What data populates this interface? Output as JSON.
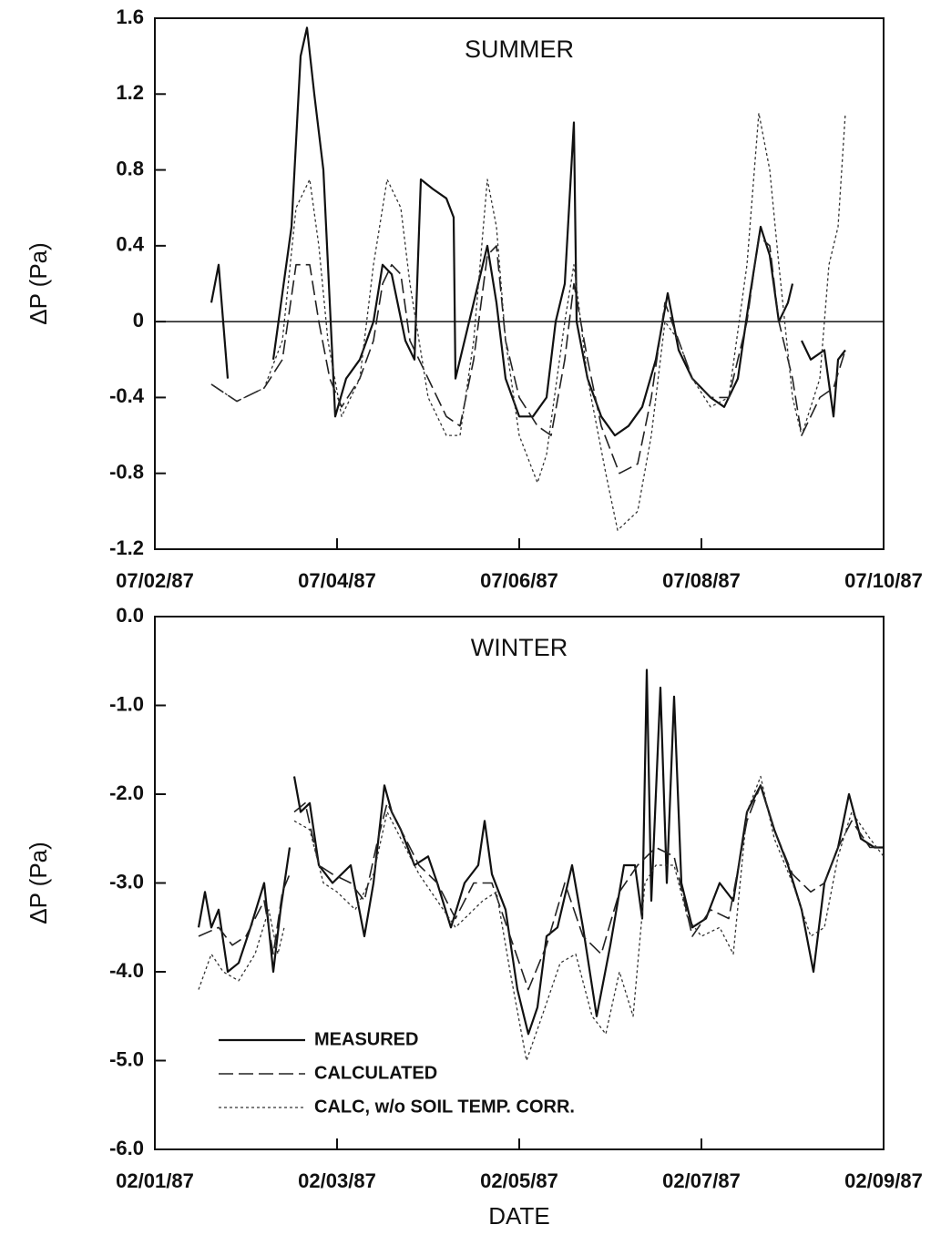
{
  "chart_data": [
    {
      "type": "line",
      "title": "SUMMER",
      "ylabel": "ΔP  (Pa)",
      "xlim": [
        0,
        8
      ],
      "xticks": [
        {
          "value": 0,
          "label": "07/02/87"
        },
        {
          "value": 2,
          "label": "07/04/87"
        },
        {
          "value": 4,
          "label": "07/06/87"
        },
        {
          "value": 6,
          "label": "07/08/87"
        },
        {
          "value": 8,
          "label": "07/10/87"
        }
      ],
      "ylim": [
        -1.2,
        1.6
      ],
      "yticks": [
        1.6,
        1.2,
        0.8,
        0.4,
        0,
        -0.4,
        -0.8,
        -1.2
      ],
      "hlines": [
        0
      ],
      "series": [
        {
          "color": "#111111",
          "dash": "solid",
          "x": [
            0.62,
            0.7,
            0.8,
            null,
            1.3,
            1.5,
            1.6,
            1.67,
            1.75,
            1.85,
            1.92,
            1.98,
            2.1,
            2.25,
            2.4,
            2.5,
            2.6,
            2.75,
            2.85,
            2.92,
            3.05,
            3.2,
            3.28,
            3.3,
            3.4,
            3.55,
            3.65,
            3.75,
            3.85,
            4.0,
            4.15,
            4.3,
            4.4,
            4.5,
            4.6,
            4.63,
            4.75,
            4.9,
            5.05,
            5.2,
            5.35,
            5.5,
            5.63,
            5.75,
            5.9,
            6.0,
            6.1,
            6.25,
            6.4,
            6.52,
            6.65,
            6.75,
            6.85,
            6.95,
            7.0,
            null,
            7.1,
            7.2,
            7.35,
            7.45,
            7.5,
            7.58
          ],
          "values": [
            0.1,
            0.3,
            -0.3,
            null,
            -0.2,
            0.5,
            1.4,
            1.55,
            1.2,
            0.8,
            0.1,
            -0.5,
            -0.3,
            -0.2,
            0.0,
            0.3,
            0.25,
            -0.1,
            -0.2,
            0.75,
            0.7,
            0.65,
            0.55,
            -0.3,
            -0.1,
            0.2,
            0.4,
            0.1,
            -0.3,
            -0.5,
            -0.5,
            -0.4,
            0.0,
            0.2,
            1.05,
            0.0,
            -0.3,
            -0.5,
            -0.6,
            -0.55,
            -0.45,
            -0.2,
            0.15,
            -0.15,
            -0.3,
            -0.35,
            -0.4,
            -0.45,
            -0.3,
            0.1,
            0.5,
            0.35,
            0.0,
            0.1,
            0.2,
            null,
            -0.1,
            -0.2,
            -0.15,
            -0.5,
            -0.2,
            -0.15
          ]
        },
        {
          "color": "#222222",
          "dash": "long-dash",
          "x": [
            0.62,
            0.9,
            1.2,
            1.4,
            1.55,
            1.7,
            1.8,
            1.92,
            2.05,
            2.25,
            2.4,
            2.5,
            2.6,
            2.7,
            2.8,
            3.0,
            3.2,
            3.35,
            3.5,
            3.65,
            3.75,
            3.85,
            4.0,
            4.2,
            4.35,
            4.5,
            4.6,
            4.75,
            4.9,
            5.1,
            5.3,
            5.45,
            5.6,
            5.75,
            5.9,
            6.1,
            6.3,
            6.5,
            6.63,
            6.75,
            6.85,
            7.0,
            7.1,
            7.3,
            7.45,
            7.58
          ],
          "values": [
            -0.33,
            -0.42,
            -0.35,
            -0.2,
            0.3,
            0.3,
            0.0,
            -0.3,
            -0.45,
            -0.3,
            -0.1,
            0.2,
            0.3,
            0.25,
            -0.1,
            -0.3,
            -0.5,
            -0.55,
            -0.2,
            0.35,
            0.4,
            -0.1,
            -0.4,
            -0.55,
            -0.6,
            -0.2,
            0.2,
            -0.2,
            -0.55,
            -0.8,
            -0.75,
            -0.4,
            0.1,
            -0.1,
            -0.3,
            -0.4,
            -0.4,
            0.0,
            0.45,
            0.4,
            0.0,
            -0.3,
            -0.6,
            -0.4,
            -0.35,
            -0.15
          ]
        },
        {
          "color": "#333333",
          "dash": "dotted",
          "x": [
            0.62,
            0.9,
            1.2,
            1.4,
            1.55,
            1.7,
            1.8,
            1.9,
            2.05,
            2.25,
            2.4,
            2.55,
            2.7,
            2.8,
            3.0,
            3.2,
            3.35,
            3.5,
            3.65,
            3.75,
            3.85,
            4.0,
            4.2,
            4.3,
            4.5,
            4.6,
            4.75,
            4.95,
            5.08,
            5.3,
            5.45,
            5.6,
            5.75,
            5.9,
            6.1,
            6.3,
            6.5,
            6.63,
            6.75,
            6.85,
            7.0,
            7.1,
            7.3,
            7.4,
            7.5,
            7.58
          ],
          "values": [
            -0.33,
            -0.42,
            -0.35,
            -0.1,
            0.6,
            0.75,
            0.4,
            -0.1,
            -0.5,
            -0.3,
            0.3,
            0.75,
            0.6,
            0.2,
            -0.4,
            -0.6,
            -0.6,
            -0.1,
            0.75,
            0.5,
            -0.1,
            -0.6,
            -0.85,
            -0.7,
            0.0,
            0.3,
            -0.3,
            -0.8,
            -1.1,
            -1.0,
            -0.6,
            0.0,
            -0.1,
            -0.3,
            -0.45,
            -0.4,
            0.3,
            1.1,
            0.8,
            0.3,
            -0.4,
            -0.6,
            -0.3,
            0.3,
            0.5,
            1.1
          ]
        }
      ]
    },
    {
      "type": "line",
      "title": "WINTER",
      "ylabel": "ΔP  (Pa)",
      "xlabel": "DATE",
      "legend": "lower left",
      "xlim": [
        0,
        8
      ],
      "xticks": [
        {
          "value": 0,
          "label": "02/01/87"
        },
        {
          "value": 2,
          "label": "02/03/87"
        },
        {
          "value": 4,
          "label": "02/05/87"
        },
        {
          "value": 6,
          "label": "02/07/87"
        },
        {
          "value": 8,
          "label": "02/09/87"
        }
      ],
      "ylim": [
        -6,
        0
      ],
      "yticks": [
        {
          "value": 0,
          "label": "0.0"
        },
        {
          "value": -1,
          "label": "-1.0"
        },
        {
          "value": -2,
          "label": "-2.0"
        },
        {
          "value": -3,
          "label": "-3.0"
        },
        {
          "value": -4,
          "label": "-4.0"
        },
        {
          "value": -5,
          "label": "-5.0"
        },
        {
          "value": -6,
          "label": "-6.0"
        }
      ],
      "series": [
        {
          "name": "MEASURED",
          "color": "#111111",
          "dash": "solid",
          "x": [
            0.48,
            0.55,
            0.62,
            0.7,
            0.8,
            0.92,
            1.05,
            1.2,
            1.3,
            1.38,
            1.48,
            null,
            1.53,
            1.6,
            1.7,
            1.8,
            1.95,
            2.15,
            2.3,
            2.4,
            2.52,
            2.6,
            2.7,
            2.85,
            3.0,
            3.1,
            3.25,
            3.4,
            3.55,
            3.62,
            3.7,
            3.85,
            3.98,
            4.1,
            4.2,
            4.3,
            4.42,
            4.58,
            4.7,
            4.85,
            5.0,
            5.15,
            5.27,
            5.35,
            5.4,
            5.45,
            5.55,
            5.62,
            5.7,
            5.78,
            5.9,
            6.05,
            6.2,
            6.35,
            6.5,
            6.65,
            6.8,
            6.95,
            7.1,
            7.23,
            7.35,
            7.5,
            7.62,
            7.75,
            7.9,
            8.0
          ],
          "values": [
            -3.5,
            -3.1,
            -3.5,
            -3.3,
            -4.0,
            -3.9,
            -3.5,
            -3.0,
            -4.0,
            -3.3,
            -2.6,
            null,
            -1.8,
            -2.2,
            -2.1,
            -2.8,
            -3.0,
            -2.8,
            -3.6,
            -3.0,
            -1.9,
            -2.2,
            -2.4,
            -2.8,
            -2.7,
            -3.0,
            -3.5,
            -3.0,
            -2.8,
            -2.3,
            -2.9,
            -3.3,
            -4.2,
            -4.7,
            -4.4,
            -3.6,
            -3.5,
            -2.8,
            -3.5,
            -4.5,
            -3.7,
            -2.8,
            -2.8,
            -3.4,
            -0.6,
            -3.2,
            -0.8,
            -3.0,
            -0.9,
            -3.0,
            -3.5,
            -3.4,
            -3.0,
            -3.2,
            -2.2,
            -1.9,
            -2.4,
            -2.8,
            -3.3,
            -4.0,
            -3.0,
            -2.6,
            -2.0,
            -2.5,
            -2.6,
            -2.6
          ]
        },
        {
          "name": "CALCULATED",
          "color": "#222222",
          "dash": "long-dash",
          "x": [
            0.48,
            0.7,
            0.85,
            1.0,
            1.2,
            1.3,
            1.4,
            1.48,
            null,
            1.53,
            1.65,
            1.8,
            1.95,
            2.15,
            2.3,
            2.45,
            2.55,
            2.7,
            2.9,
            3.1,
            3.3,
            3.5,
            3.7,
            3.9,
            4.1,
            4.3,
            4.5,
            4.7,
            4.9,
            5.1,
            5.3,
            5.5,
            5.7,
            5.9,
            6.1,
            6.3,
            6.5,
            6.65,
            6.8,
            7.0,
            7.2,
            7.35,
            7.5,
            7.65,
            7.85,
            8.0
          ],
          "values": [
            -3.6,
            -3.5,
            -3.7,
            -3.6,
            -3.2,
            -3.8,
            -3.1,
            -2.9,
            null,
            -2.2,
            -2.1,
            -2.8,
            -2.9,
            -3.0,
            -3.2,
            -2.5,
            -2.1,
            -2.4,
            -2.8,
            -3.0,
            -3.4,
            -3.0,
            -3.0,
            -3.6,
            -4.2,
            -3.7,
            -3.0,
            -3.6,
            -3.8,
            -3.1,
            -2.8,
            -2.6,
            -2.7,
            -3.6,
            -3.3,
            -3.4,
            -2.3,
            -1.9,
            -2.4,
            -2.9,
            -3.1,
            -3.0,
            -2.6,
            -2.3,
            -2.6,
            -2.6
          ]
        },
        {
          "name": "CALC, w/o SOIL TEMP. CORR.",
          "color": "#333333",
          "dash": "dotted",
          "x": [
            0.48,
            0.62,
            0.75,
            0.92,
            1.1,
            1.25,
            1.35,
            1.42,
            null,
            1.53,
            1.7,
            1.85,
            2.0,
            2.2,
            2.4,
            2.55,
            2.7,
            2.9,
            3.1,
            3.3,
            3.6,
            3.75,
            3.9,
            4.08,
            4.25,
            4.45,
            4.62,
            4.8,
            4.95,
            5.1,
            5.25,
            5.38,
            5.5,
            5.7,
            5.85,
            6.0,
            6.2,
            6.35,
            6.5,
            6.65,
            6.8,
            7.0,
            7.2,
            7.35,
            7.5,
            7.65,
            7.85,
            8.0
          ],
          "values": [
            -4.2,
            -3.8,
            -4.0,
            -4.1,
            -3.8,
            -3.3,
            -3.8,
            -3.5,
            null,
            -2.3,
            -2.4,
            -3.0,
            -3.1,
            -3.3,
            -2.9,
            -2.2,
            -2.5,
            -2.9,
            -3.2,
            -3.5,
            -3.2,
            -3.1,
            -4.0,
            -5.0,
            -4.5,
            -3.9,
            -3.8,
            -4.5,
            -4.7,
            -4.0,
            -4.5,
            -3.0,
            -2.8,
            -2.8,
            -3.4,
            -3.6,
            -3.5,
            -3.8,
            -2.2,
            -1.8,
            -2.5,
            -3.0,
            -3.6,
            -3.5,
            -2.7,
            -2.2,
            -2.5,
            -2.7
          ]
        }
      ]
    }
  ]
}
